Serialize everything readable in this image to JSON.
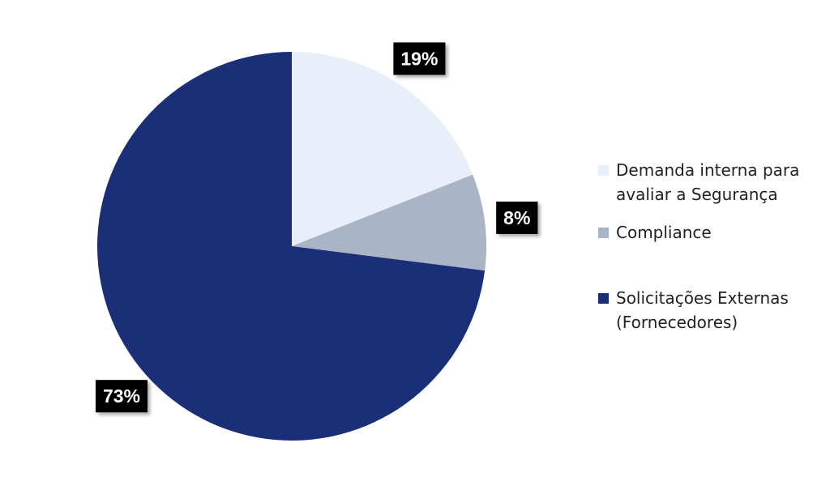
{
  "chart_data": {
    "type": "pie",
    "categories": [
      "Demanda interna para avaliar a Segurança",
      "Compliance",
      "Solicitações Externas (Fornecedores)"
    ],
    "values": [
      19,
      8,
      73
    ],
    "value_labels": [
      "19%",
      "8%",
      "73%"
    ],
    "colors": [
      "#e8effa",
      "#a9b5c6",
      "#1a2f78"
    ]
  }
}
